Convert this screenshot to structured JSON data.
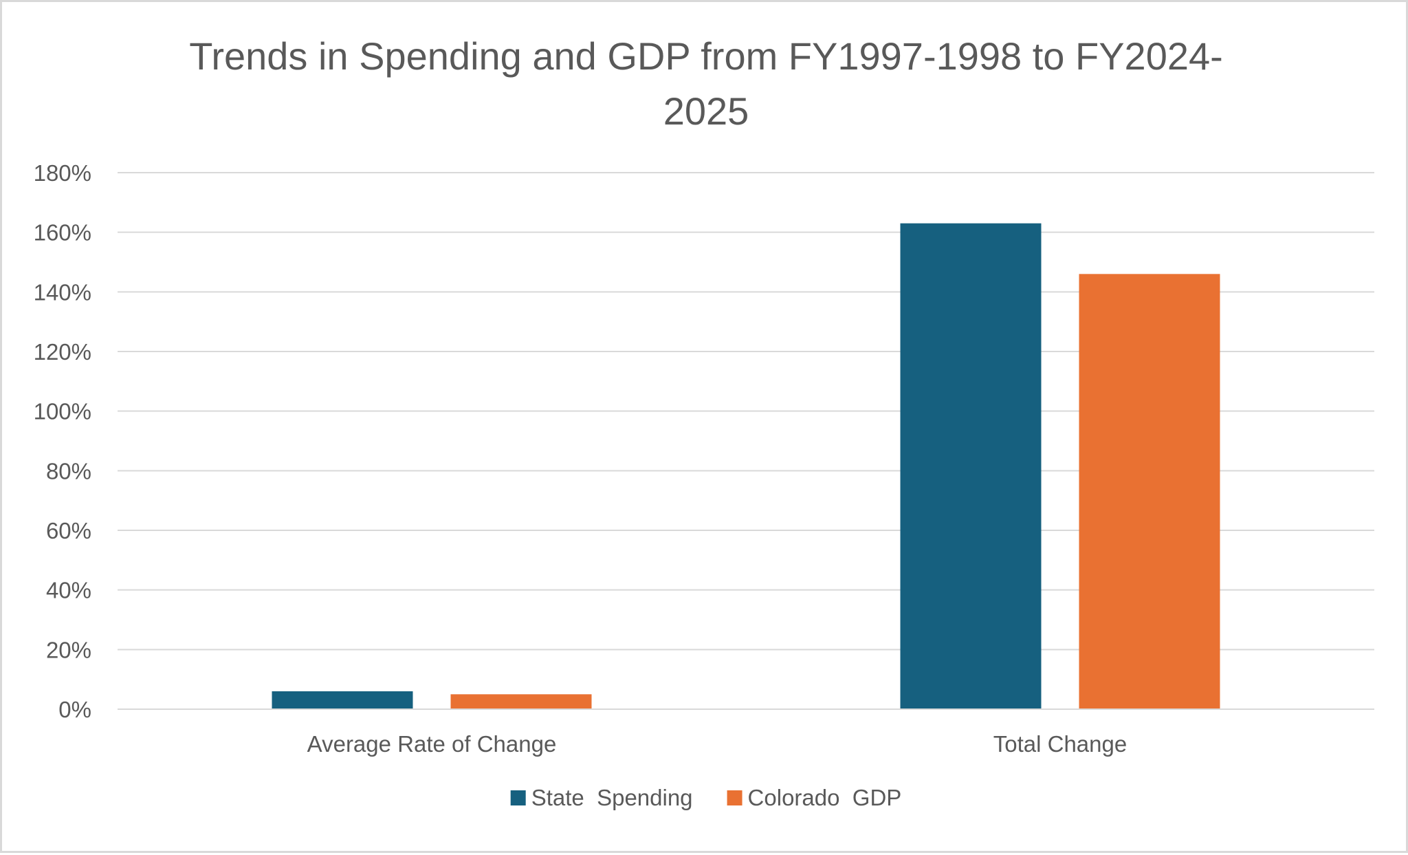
{
  "chart_data": {
    "type": "bar",
    "title_lines": [
      "Trends in Spending and GDP from FY1997-1998 to FY2024-",
      "2025"
    ],
    "categories": [
      "Average Rate of Change",
      "Total Change"
    ],
    "series": [
      {
        "name": "State  Spending",
        "values": [
          6,
          163
        ],
        "color": "#16607f"
      },
      {
        "name": "Colorado  GDP",
        "values": [
          5,
          146
        ],
        "color": "#e97132"
      }
    ],
    "ylim": [
      0,
      180
    ],
    "yticks": [
      0,
      20,
      40,
      60,
      80,
      100,
      120,
      140,
      160,
      180
    ],
    "ytick_labels": [
      "0%",
      "20%",
      "40%",
      "60%",
      "80%",
      "100%",
      "120%",
      "140%",
      "160%",
      "180%"
    ],
    "value_unit": "percent",
    "grid": true,
    "legend_position": "bottom",
    "xlabel": "",
    "ylabel": ""
  }
}
